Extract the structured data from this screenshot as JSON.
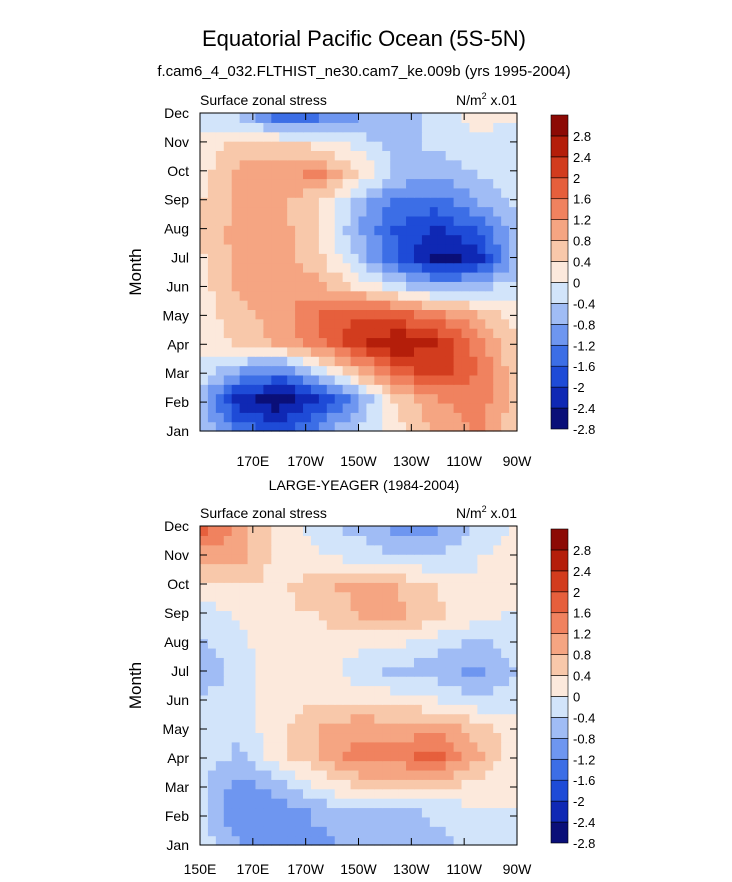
{
  "title": "Equatorial Pacific Ocean (5S-5N)",
  "colors": {
    "levels": [
      "#0a0f78",
      "#0f28b4",
      "#1e4bd7",
      "#3c6ee6",
      "#6e96f0",
      "#a0bcf5",
      "#d2e4fa",
      "#fce9dc",
      "#f8c8aa",
      "#f5a582",
      "#f0825f",
      "#e65f3c",
      "#d23c1e",
      "#b41e0a",
      "#8c0a05"
    ]
  },
  "chart_data": [
    {
      "type": "heatmap",
      "subtitle": "f.cam6_4_032.FLTHIST_ne30.cam7_ke.009b (yrs 1995-2004)",
      "left_label": "Surface zonal stress",
      "units_label": "N/m",
      "units_sup": "2",
      "units_scale": " x.01",
      "ylabel": "Month",
      "months": [
        "Jan",
        "Feb",
        "Mar",
        "Apr",
        "May",
        "Jun",
        "Jul",
        "Aug",
        "Sep",
        "Oct",
        "Nov",
        "Dec"
      ],
      "xlim": [
        150,
        270
      ],
      "xticks": [
        {
          "v": 170,
          "label": "170E"
        },
        {
          "v": 190,
          "label": "170W"
        },
        {
          "v": 210,
          "label": "150W"
        },
        {
          "v": 230,
          "label": "130W"
        },
        {
          "v": 250,
          "label": "110W"
        },
        {
          "v": 270,
          "label": "90W"
        }
      ],
      "colorbar_labels": [
        "2.8",
        "2.4",
        "2",
        "1.6",
        "1.2",
        "0.8",
        "0.4",
        "0",
        "-0.4",
        "-0.8",
        "-1.2",
        "-1.6",
        "-2",
        "-2.4",
        "-2.8"
      ],
      "lon_grid": [
        150,
        165,
        180,
        195,
        210,
        225,
        240,
        255,
        270
      ],
      "values": [
        [
          -0.4,
          -1.5,
          -1.8,
          -1.2,
          -0.4,
          0.3,
          0.9,
          1.3,
          0.5
        ],
        [
          -0.6,
          -2.2,
          -2.8,
          -2.0,
          -0.9,
          0.6,
          1.2,
          1.5,
          0.6
        ],
        [
          -0.1,
          -0.8,
          -1.2,
          -0.3,
          0.9,
          1.8,
          2.2,
          1.6,
          0.5
        ],
        [
          0.1,
          0.5,
          0.9,
          1.5,
          2.3,
          2.8,
          2.4,
          1.4,
          0.4
        ],
        [
          0.2,
          0.7,
          1.0,
          1.6,
          2.0,
          1.8,
          1.3,
          0.8,
          0.2
        ],
        [
          0.2,
          0.9,
          1.2,
          0.9,
          0.3,
          -0.3,
          -0.8,
          -0.5,
          -0.2
        ],
        [
          0.3,
          1.0,
          1.0,
          0.5,
          -0.5,
          -1.6,
          -2.6,
          -2.2,
          -0.6
        ],
        [
          0.4,
          1.0,
          1.0,
          0.4,
          -0.8,
          -1.7,
          -2.1,
          -1.6,
          -0.5
        ],
        [
          0.4,
          0.9,
          0.9,
          0.4,
          -0.6,
          -1.3,
          -1.4,
          -0.8,
          -0.3
        ],
        [
          0.2,
          0.9,
          1.0,
          1.3,
          0.4,
          -0.5,
          -0.8,
          -0.4,
          -0.2
        ],
        [
          0.1,
          0.7,
          0.7,
          0.3,
          -0.1,
          -0.6,
          -0.3,
          -0.1,
          -0.1
        ],
        [
          -0.2,
          -0.4,
          -1.5,
          -1.2,
          -0.8,
          -0.7,
          -0.2,
          0.1,
          0.0
        ]
      ]
    },
    {
      "type": "heatmap",
      "subtitle": "LARGE-YEAGER (1984-2004)",
      "left_label": "Surface zonal stress",
      "units_label": "N/m",
      "units_sup": "2",
      "units_scale": " x.01",
      "ylabel": "Month",
      "months": [
        "Jan",
        "Feb",
        "Mar",
        "Apr",
        "May",
        "Jun",
        "Jul",
        "Aug",
        "Sep",
        "Oct",
        "Nov",
        "Dec"
      ],
      "xlim": [
        150,
        270
      ],
      "xticks": [
        {
          "v": 150,
          "label": "150E"
        },
        {
          "v": 170,
          "label": "170E"
        },
        {
          "v": 190,
          "label": "170W"
        },
        {
          "v": 210,
          "label": "150W"
        },
        {
          "v": 230,
          "label": "130W"
        },
        {
          "v": 250,
          "label": "110W"
        },
        {
          "v": 270,
          "label": "90W"
        }
      ],
      "colorbar_labels": [
        "2.8",
        "2.4",
        "2",
        "1.6",
        "1.2",
        "0.8",
        "0.4",
        "0",
        "-0.4",
        "-0.8",
        "-1.2",
        "-1.6",
        "-2",
        "-2.4",
        "-2.8"
      ],
      "lon_grid": [
        150,
        165,
        180,
        195,
        210,
        225,
        240,
        255,
        270
      ],
      "values": [
        [
          -0.2,
          -0.8,
          -1.0,
          -0.9,
          -0.6,
          -0.4,
          -0.5,
          -0.2,
          0.0
        ],
        [
          -0.3,
          -1.2,
          -1.1,
          -0.7,
          -0.5,
          -0.6,
          -0.3,
          -0.1,
          0.0
        ],
        [
          -0.3,
          -1.0,
          -0.6,
          0.1,
          0.5,
          0.6,
          0.5,
          0.3,
          0.0
        ],
        [
          -0.1,
          -0.5,
          0.3,
          0.8,
          1.4,
          1.4,
          1.8,
          0.9,
          0.1
        ],
        [
          -0.2,
          -0.3,
          0.3,
          0.8,
          1.1,
          1.0,
          1.1,
          0.6,
          0.1
        ],
        [
          -0.3,
          -0.2,
          0.2,
          0.4,
          0.3,
          0.2,
          0.0,
          -0.3,
          -0.1
        ],
        [
          -0.8,
          -0.2,
          0.3,
          0.2,
          -0.2,
          -0.5,
          -0.6,
          -0.9,
          -0.4
        ],
        [
          -0.5,
          -0.1,
          0.3,
          0.3,
          0.1,
          0.1,
          -0.3,
          -0.5,
          -0.2
        ],
        [
          -0.3,
          0.1,
          0.3,
          0.4,
          0.8,
          0.9,
          0.5,
          0.1,
          -0.1
        ],
        [
          0.3,
          0.4,
          0.3,
          0.7,
          0.9,
          0.8,
          0.4,
          0.0,
          0.2
        ],
        [
          0.8,
          0.9,
          0.2,
          0.1,
          -0.1,
          -0.3,
          -0.3,
          0.0,
          0.3
        ],
        [
          1.8,
          1.0,
          0.3,
          -0.2,
          -0.5,
          -0.9,
          -0.8,
          -0.3,
          0.1
        ]
      ]
    }
  ]
}
